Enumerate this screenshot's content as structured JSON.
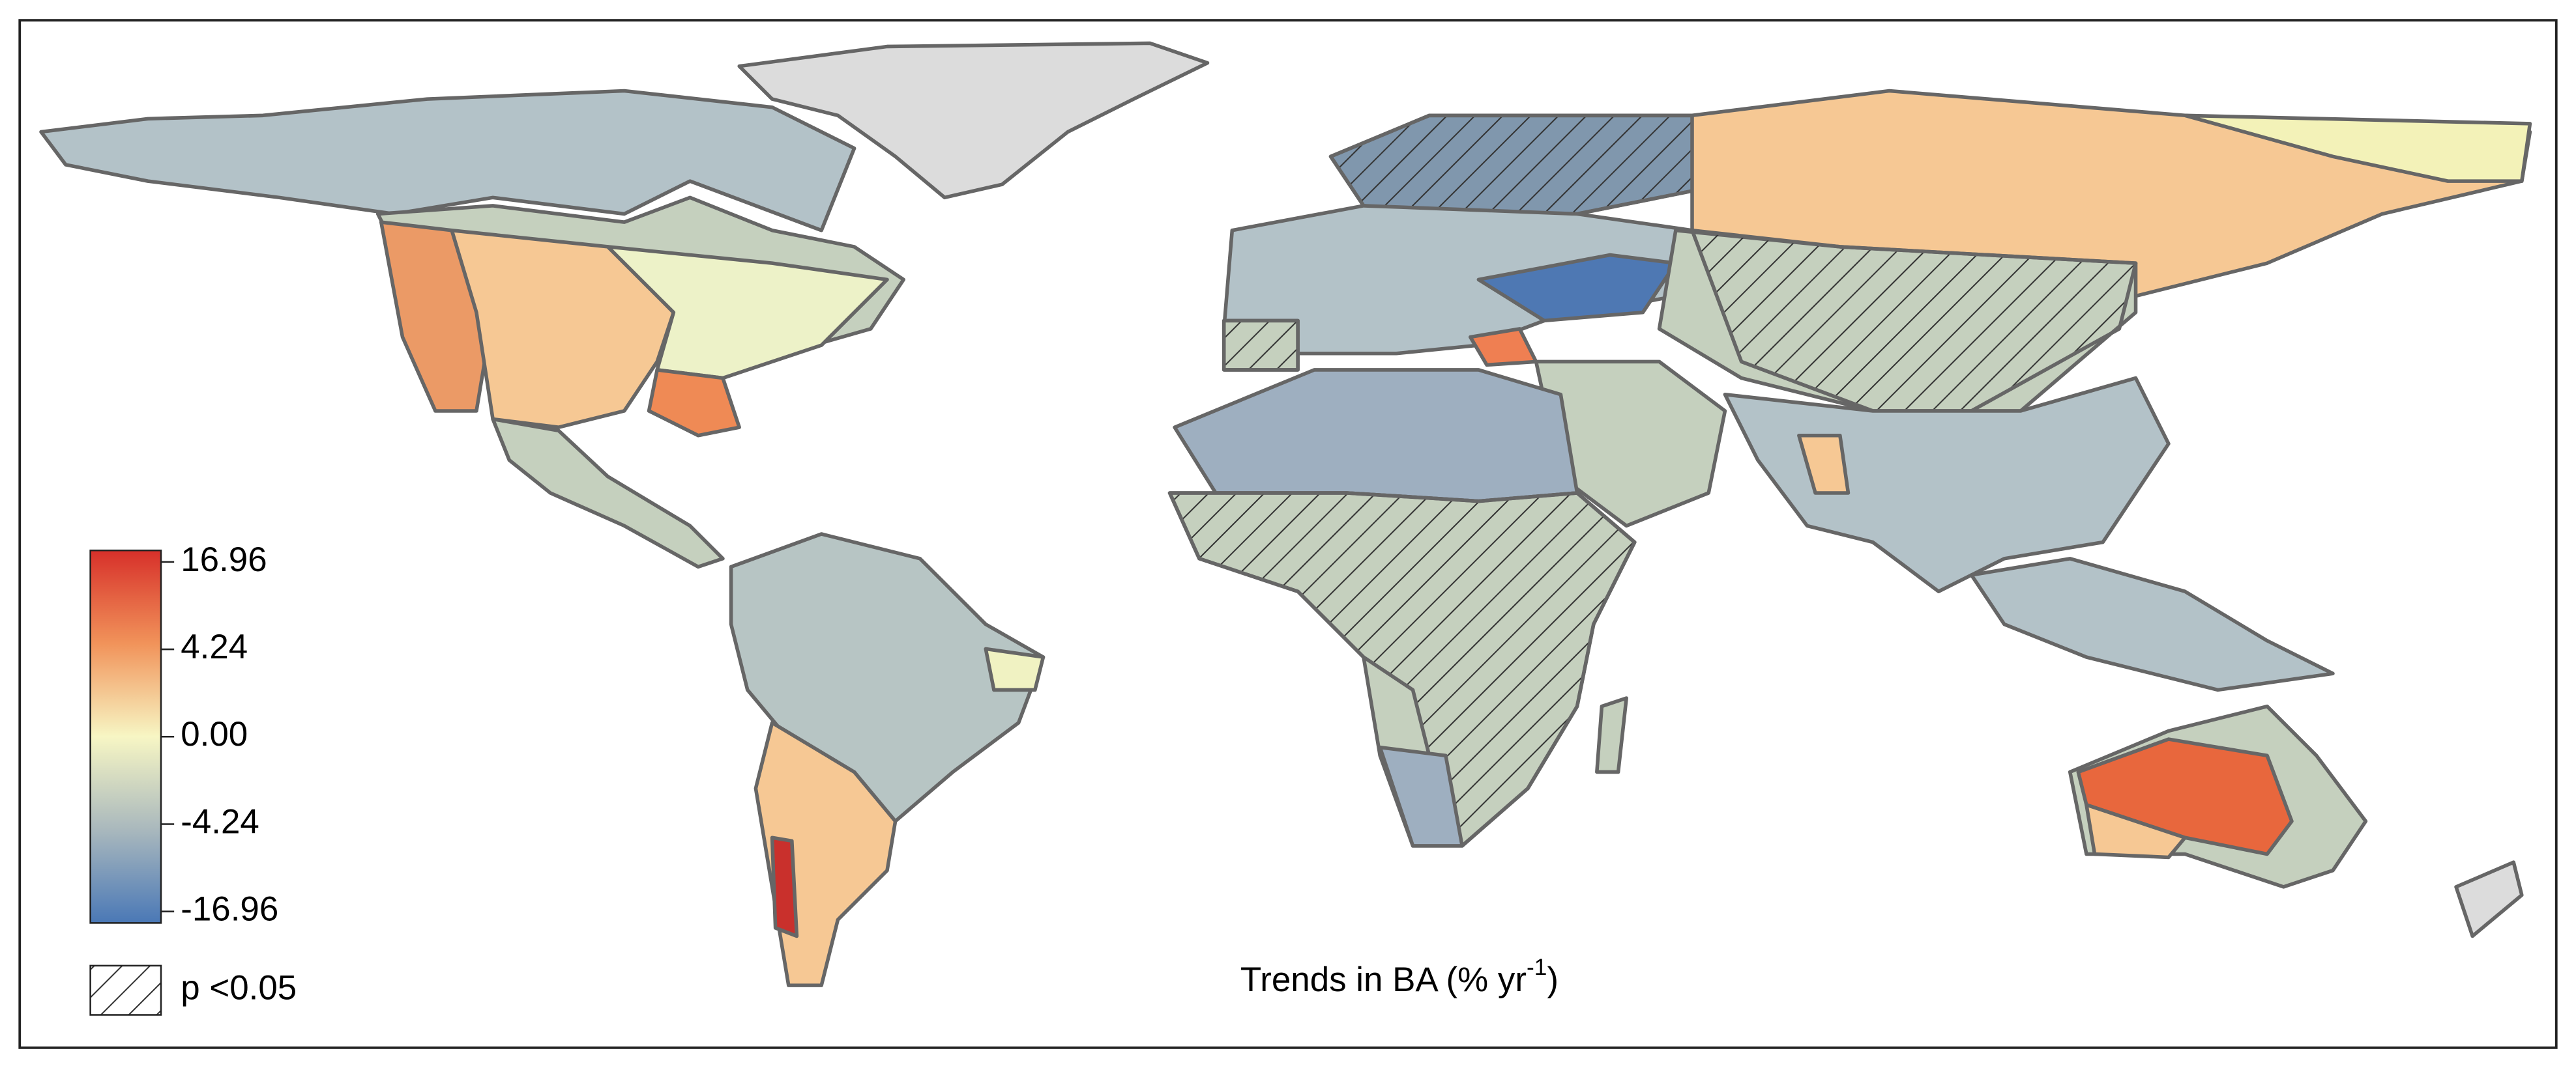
{
  "legend": {
    "ticks": [
      16.96,
      4.24,
      {
        "value": 0,
        "label": "0.00"
      },
      -4.24,
      -16.96
    ],
    "significance_label": "p <0.05"
  },
  "title": {
    "text": "Trends in BA (% yr",
    "superscript": "-1",
    "close": ")"
  }
}
